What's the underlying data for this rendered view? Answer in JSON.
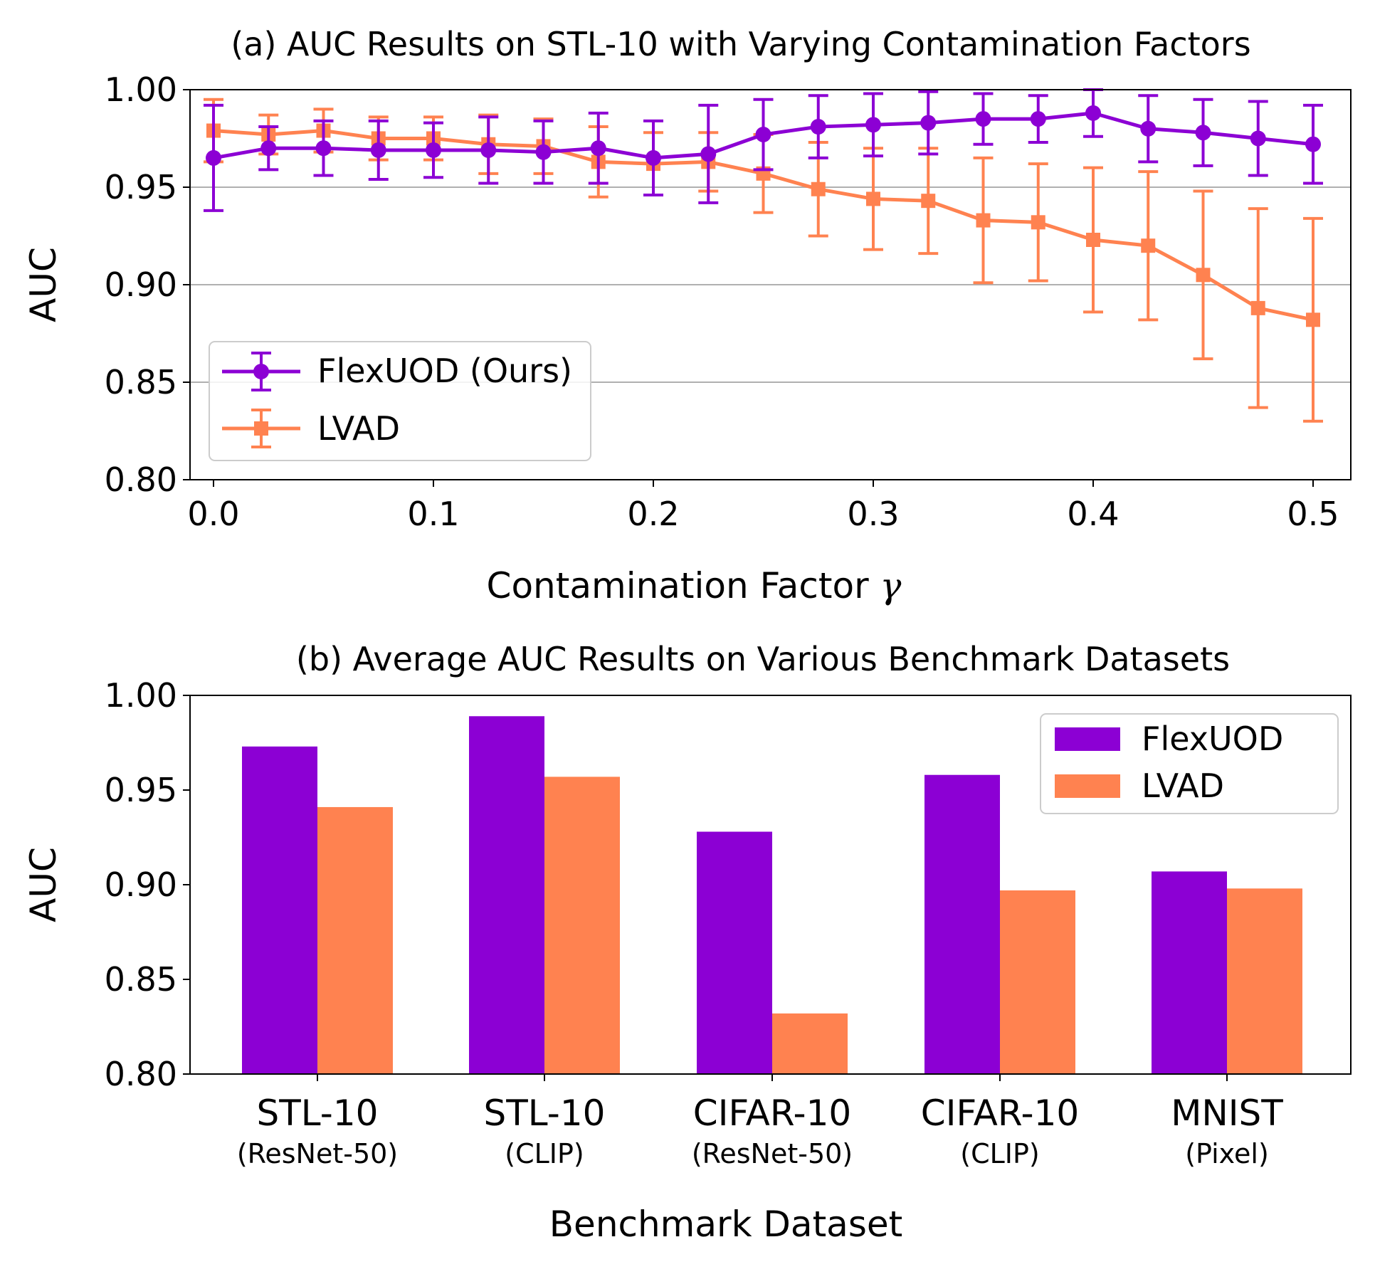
{
  "chart_data": [
    {
      "type": "line",
      "title": "(a) AUC Results on STL-10 with Varying Contamination Factors",
      "xlabel": "Contamination Factor",
      "xlabel_symbol": "γ",
      "ylabel": "AUC",
      "xlim": [
        -0.01,
        0.52
      ],
      "ylim": [
        0.8,
        1.0
      ],
      "xticks": [
        "0.0",
        "0.1",
        "0.2",
        "0.3",
        "0.4",
        "0.5"
      ],
      "xtick_values": [
        0,
        0.1,
        0.2,
        0.3,
        0.4,
        0.5
      ],
      "yticks": [
        "0.80",
        "0.85",
        "0.90",
        "0.95",
        "1.00"
      ],
      "ytick_values": [
        0.8,
        0.85,
        0.9,
        0.95,
        1.0
      ],
      "grid": "y",
      "legend": "center-left",
      "x": [
        0.0,
        0.025,
        0.05,
        0.075,
        0.1,
        0.125,
        0.15,
        0.175,
        0.2,
        0.225,
        0.25,
        0.275,
        0.3,
        0.325,
        0.35,
        0.375,
        0.4,
        0.425,
        0.45,
        0.475,
        0.5
      ],
      "series": [
        {
          "name": "FlexUOD (Ours)",
          "color": "#8c00d4",
          "marker": "circle",
          "values": [
            0.965,
            0.97,
            0.97,
            0.969,
            0.969,
            0.969,
            0.968,
            0.97,
            0.965,
            0.967,
            0.977,
            0.981,
            0.982,
            0.983,
            0.985,
            0.985,
            0.988,
            0.98,
            0.978,
            0.975,
            0.972
          ],
          "errors": [
            0.027,
            0.011,
            0.014,
            0.015,
            0.014,
            0.017,
            0.016,
            0.018,
            0.019,
            0.025,
            0.018,
            0.016,
            0.016,
            0.016,
            0.013,
            0.012,
            0.012,
            0.017,
            0.017,
            0.019,
            0.02
          ]
        },
        {
          "name": "LVAD",
          "color": "#ff8250",
          "marker": "square",
          "values": [
            0.979,
            0.977,
            0.979,
            0.975,
            0.975,
            0.972,
            0.971,
            0.963,
            0.962,
            0.963,
            0.957,
            0.949,
            0.944,
            0.943,
            0.933,
            0.932,
            0.923,
            0.92,
            0.905,
            0.888,
            0.882
          ],
          "errors": [
            0.016,
            0.01,
            0.011,
            0.011,
            0.011,
            0.015,
            0.014,
            0.018,
            0.016,
            0.015,
            0.02,
            0.024,
            0.026,
            0.027,
            0.032,
            0.03,
            0.037,
            0.038,
            0.043,
            0.051,
            0.052
          ]
        }
      ]
    },
    {
      "type": "bar",
      "title": "(b) Average AUC Results on Various Benchmark Datasets",
      "xlabel": "Benchmark Dataset",
      "ylabel": "AUC",
      "ylim": [
        0.8,
        1.0
      ],
      "yticks": [
        "0.80",
        "0.85",
        "0.90",
        "0.95",
        "1.00"
      ],
      "ytick_values": [
        0.8,
        0.85,
        0.9,
        0.95,
        1.0
      ],
      "legend": "top-right",
      "categories": [
        {
          "name": "STL-10",
          "sub": "(ResNet-50)"
        },
        {
          "name": "STL-10",
          "sub": "(CLIP)"
        },
        {
          "name": "CIFAR-10",
          "sub": "(ResNet-50)"
        },
        {
          "name": "CIFAR-10",
          "sub": "(CLIP)"
        },
        {
          "name": "MNIST",
          "sub": "(Pixel)"
        }
      ],
      "series": [
        {
          "name": "FlexUOD",
          "color": "#8c00d4",
          "values": [
            0.973,
            0.989,
            0.928,
            0.958,
            0.907
          ]
        },
        {
          "name": "LVAD",
          "color": "#ff8250",
          "values": [
            0.941,
            0.957,
            0.832,
            0.897,
            0.898
          ]
        }
      ]
    }
  ]
}
